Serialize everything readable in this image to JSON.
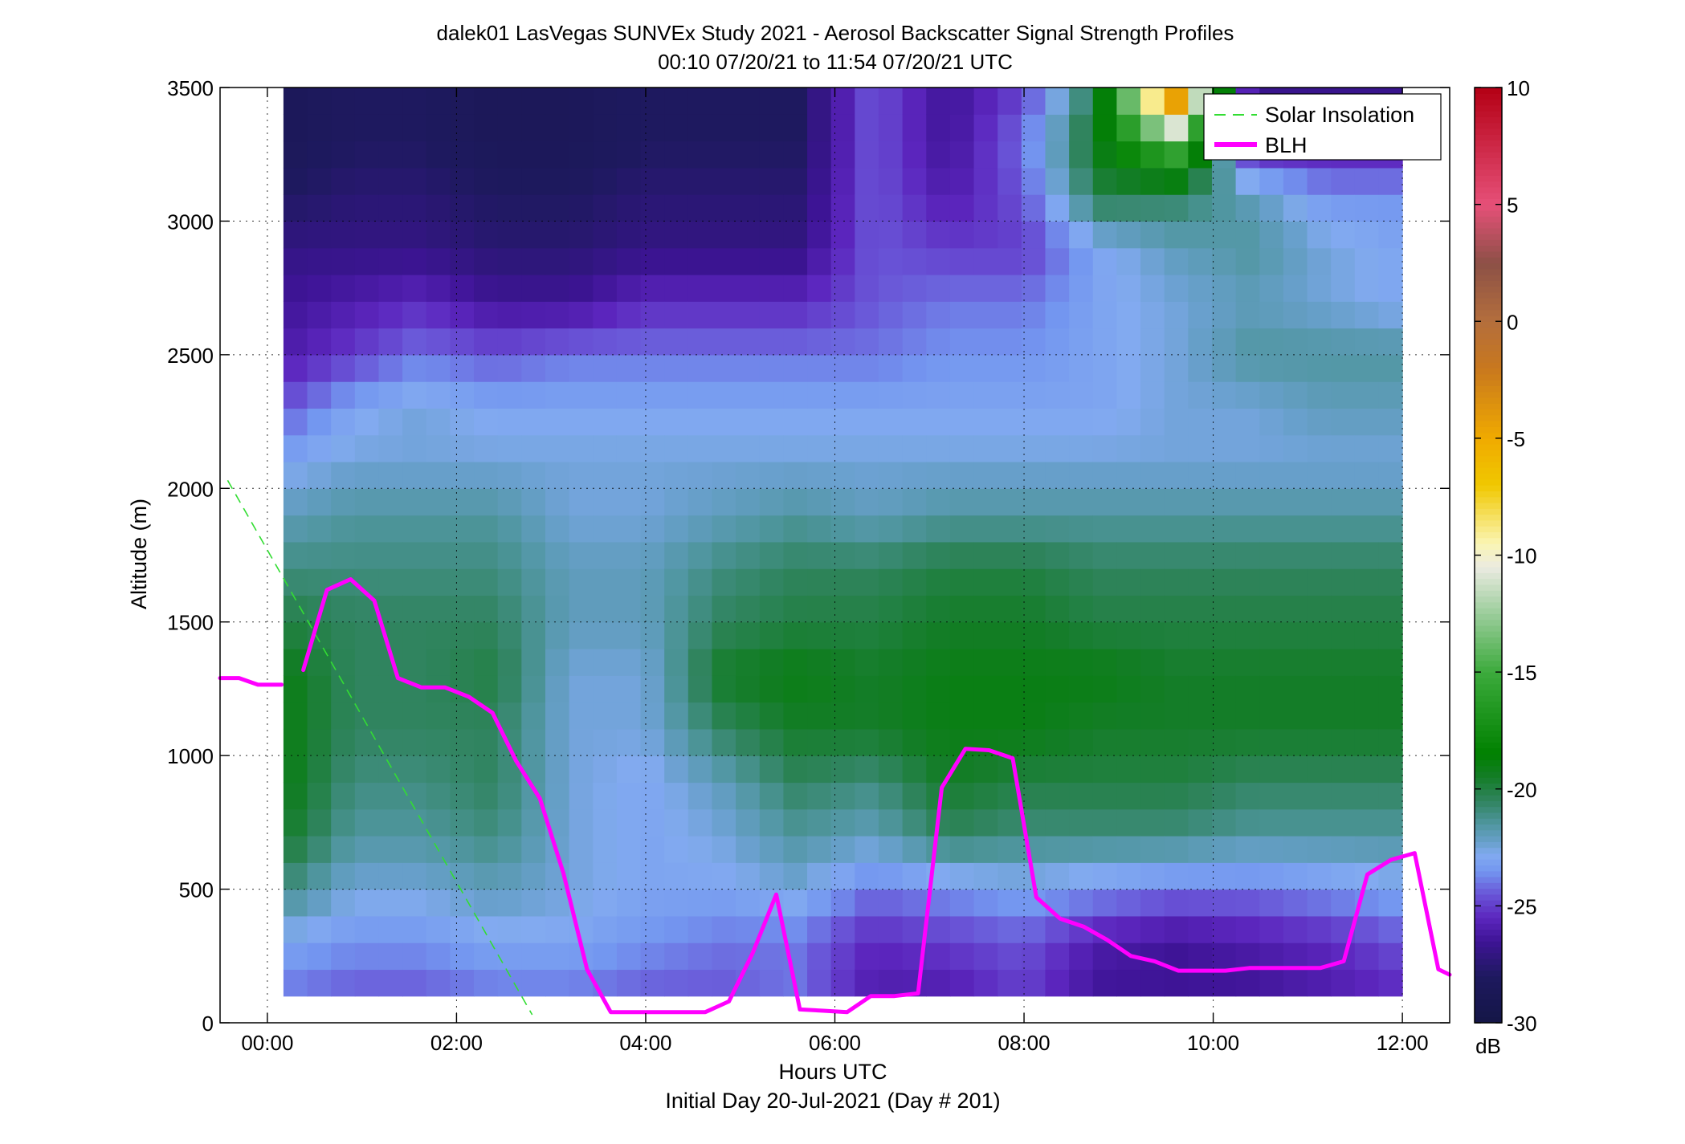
{
  "chart_data": {
    "type": "heatmap",
    "title": "dalek01 LasVegas SUNVEx Study 2021 - Aerosol Backscatter Signal Strength Profiles",
    "subtitle": "00:10 07/20/21 to 11:54 07/20/21  UTC",
    "xlabel": "Hours UTC",
    "xlabel2": "Initial Day 20-Jul-2021 (Day # 201)",
    "ylabel": "Altitude (m)",
    "x_ticks": [
      "00:00",
      "02:00",
      "04:00",
      "06:00",
      "08:00",
      "10:00",
      "12:00"
    ],
    "y_ticks": [
      "0",
      "500",
      "1000",
      "1500",
      "2000",
      "2500",
      "3000",
      "3500"
    ],
    "xlim_hours": [
      -0.5,
      12.5
    ],
    "ylim": [
      0,
      3500
    ],
    "grid": true,
    "legend_position": "top-right",
    "colorbar": {
      "label": "dB",
      "ticks": [
        "10",
        "5",
        "0",
        "-5",
        "-10",
        "-15",
        "-20",
        "-25",
        "-30"
      ],
      "range": [
        -30,
        10
      ]
    },
    "heatmap": {
      "value_units": "dB",
      "x_start_hours": 0.17,
      "x_end_hours": 12.0,
      "y_start": 100,
      "y_end": 3500,
      "time_anchors": [
        0.17,
        0.9,
        1.6,
        2.4,
        3.2,
        4.0,
        4.8,
        5.6,
        6.4,
        7.2,
        8.0,
        8.8,
        9.6,
        10.4,
        11.2,
        12.0
      ],
      "altitude_anchors": [
        100,
        300,
        500,
        700,
        900,
        1100,
        1300,
        1500,
        1700,
        1900,
        2100,
        2300,
        2500,
        2700,
        2900,
        3100,
        3300,
        3500
      ],
      "values_dB": [
        [
          -24,
          -24.5,
          -24.5,
          -24,
          -24,
          -24.5,
          -24.5,
          -24,
          -26,
          -26,
          -25,
          -26.5,
          -26.5,
          -26.5,
          -26,
          -25.5
        ],
        [
          -23,
          -23.5,
          -23.5,
          -23,
          -23,
          -23.5,
          -24,
          -24,
          -25.5,
          -25,
          -24.5,
          -26,
          -26.5,
          -26,
          -25.5,
          -24.5
        ],
        [
          -21,
          -22.5,
          -22.5,
          -22,
          -22.5,
          -23,
          -23,
          -22.5,
          -24,
          -23.5,
          -23,
          -23.5,
          -24,
          -24,
          -23.5,
          -23
        ],
        [
          -19.5,
          -21.5,
          -21.5,
          -21,
          -22.5,
          -23,
          -22.5,
          -21.5,
          -22,
          -20.5,
          -21,
          -21,
          -21,
          -21.5,
          -21.5,
          -21.5
        ],
        [
          -19,
          -21,
          -21,
          -20.5,
          -22.5,
          -23,
          -22,
          -20.5,
          -21,
          -19.5,
          -20,
          -20,
          -20,
          -20.5,
          -20.5,
          -20.5
        ],
        [
          -19,
          -20.5,
          -20.5,
          -20.5,
          -22.5,
          -22.5,
          -20.5,
          -19.5,
          -19.5,
          -19,
          -19,
          -19.5,
          -19.5,
          -19.5,
          -19.5,
          -19.5
        ],
        [
          -19,
          -20.5,
          -20.5,
          -20,
          -22.5,
          -22.5,
          -19.5,
          -19,
          -19.5,
          -19,
          -19,
          -19,
          -19.5,
          -19.5,
          -19.5,
          -19.5
        ],
        [
          -20,
          -20.5,
          -20.5,
          -20.5,
          -22,
          -22,
          -20.5,
          -20,
          -20,
          -19.5,
          -19.5,
          -20,
          -20,
          -20,
          -20,
          -20
        ],
        [
          -21,
          -21,
          -21,
          -21,
          -22,
          -22,
          -21,
          -20.5,
          -20.5,
          -20,
          -20,
          -20.5,
          -20.5,
          -20.5,
          -20.5,
          -20.5
        ],
        [
          -22,
          -21.5,
          -21.5,
          -21.5,
          -22.5,
          -22.5,
          -22,
          -21.5,
          -22,
          -21.5,
          -21.5,
          -21.5,
          -21.5,
          -21.5,
          -21.5,
          -21.5
        ],
        [
          -23,
          -22.5,
          -22.5,
          -22.5,
          -22.5,
          -22.5,
          -22.5,
          -22.5,
          -22.5,
          -22.5,
          -22.5,
          -22.5,
          -22.5,
          -22.5,
          -22.5,
          -22.5
        ],
        [
          -24.5,
          -23,
          -22.5,
          -23,
          -23,
          -23,
          -23,
          -23,
          -23,
          -23,
          -23,
          -23,
          -22.5,
          -22.5,
          -22,
          -22
        ],
        [
          -26,
          -25,
          -24,
          -24.5,
          -24,
          -24,
          -24,
          -24,
          -24,
          -23.5,
          -23.5,
          -23,
          -22.5,
          -21.5,
          -21.5,
          -21.5
        ],
        [
          -26.5,
          -26,
          -25.5,
          -26.5,
          -26.5,
          -25.5,
          -25.5,
          -25.5,
          -24.5,
          -24,
          -24,
          -23,
          -22.5,
          -22,
          -22.5,
          -23
        ],
        [
          -27,
          -27,
          -27,
          -27.5,
          -27.5,
          -27,
          -27,
          -27,
          -24.5,
          -25,
          -25,
          -23,
          -22,
          -21.5,
          -22.5,
          -23
        ],
        [
          -28,
          -27.5,
          -27.5,
          -28,
          -28,
          -27.5,
          -27.5,
          -27.5,
          -24.5,
          -26,
          -24.5,
          -20,
          -20.5,
          -22,
          -23.5,
          -23.5
        ],
        [
          -28.5,
          -28,
          -28,
          -28.5,
          -28.5,
          -28,
          -28,
          -28,
          -24.5,
          -26.5,
          -24,
          -19,
          -14,
          -26,
          -26,
          -26
        ],
        [
          -28.5,
          -28,
          -28,
          -28.5,
          -28.5,
          -28,
          -28,
          -28,
          -24.5,
          -26.5,
          -25,
          -20,
          -1,
          -27,
          -27,
          -27
        ]
      ]
    },
    "series": [
      {
        "name": "Solar Insolation",
        "color": "#33dd33",
        "style": "dashed",
        "x_hours": [
          -0.42,
          2.8
        ],
        "y": [
          2030,
          30
        ]
      },
      {
        "name": "BLH",
        "color": "#ff00ff",
        "style": "solid",
        "segments": [
          {
            "x_hours": [
              -0.5,
              -0.3,
              -0.1,
              0.15
            ],
            "y": [
              1290,
              1290,
              1265,
              1265
            ]
          },
          {
            "x_hours": [
              0.38,
              0.63,
              0.88,
              1.13,
              1.38,
              1.63,
              1.88,
              2.13,
              2.38,
              2.63,
              2.88,
              3.13,
              3.38,
              3.63,
              3.88,
              4.13,
              4.38,
              4.63,
              4.88,
              5.13,
              5.38,
              5.63,
              5.88,
              6.13,
              6.38,
              6.63,
              6.88,
              7.13,
              7.38,
              7.63,
              7.88,
              8.13,
              8.38,
              8.63,
              8.88,
              9.13,
              9.38,
              9.63,
              9.88,
              10.13,
              10.38,
              10.63,
              10.88,
              11.13,
              11.38,
              11.63,
              11.88,
              12.13,
              12.38,
              12.5
            ],
            "y": [
              1320,
              1620,
              1660,
              1580,
              1290,
              1255,
              1255,
              1220,
              1160,
              980,
              840,
              560,
              200,
              40,
              40,
              40,
              40,
              40,
              80,
              260,
              480,
              50,
              45,
              40,
              100,
              100,
              110,
              880,
              1025,
              1020,
              990,
              470,
              390,
              360,
              310,
              250,
              230,
              195,
              195,
              195,
              205,
              205,
              205,
              205,
              230,
              555,
              610,
              635,
              200,
              180
            ]
          }
        ]
      }
    ]
  }
}
